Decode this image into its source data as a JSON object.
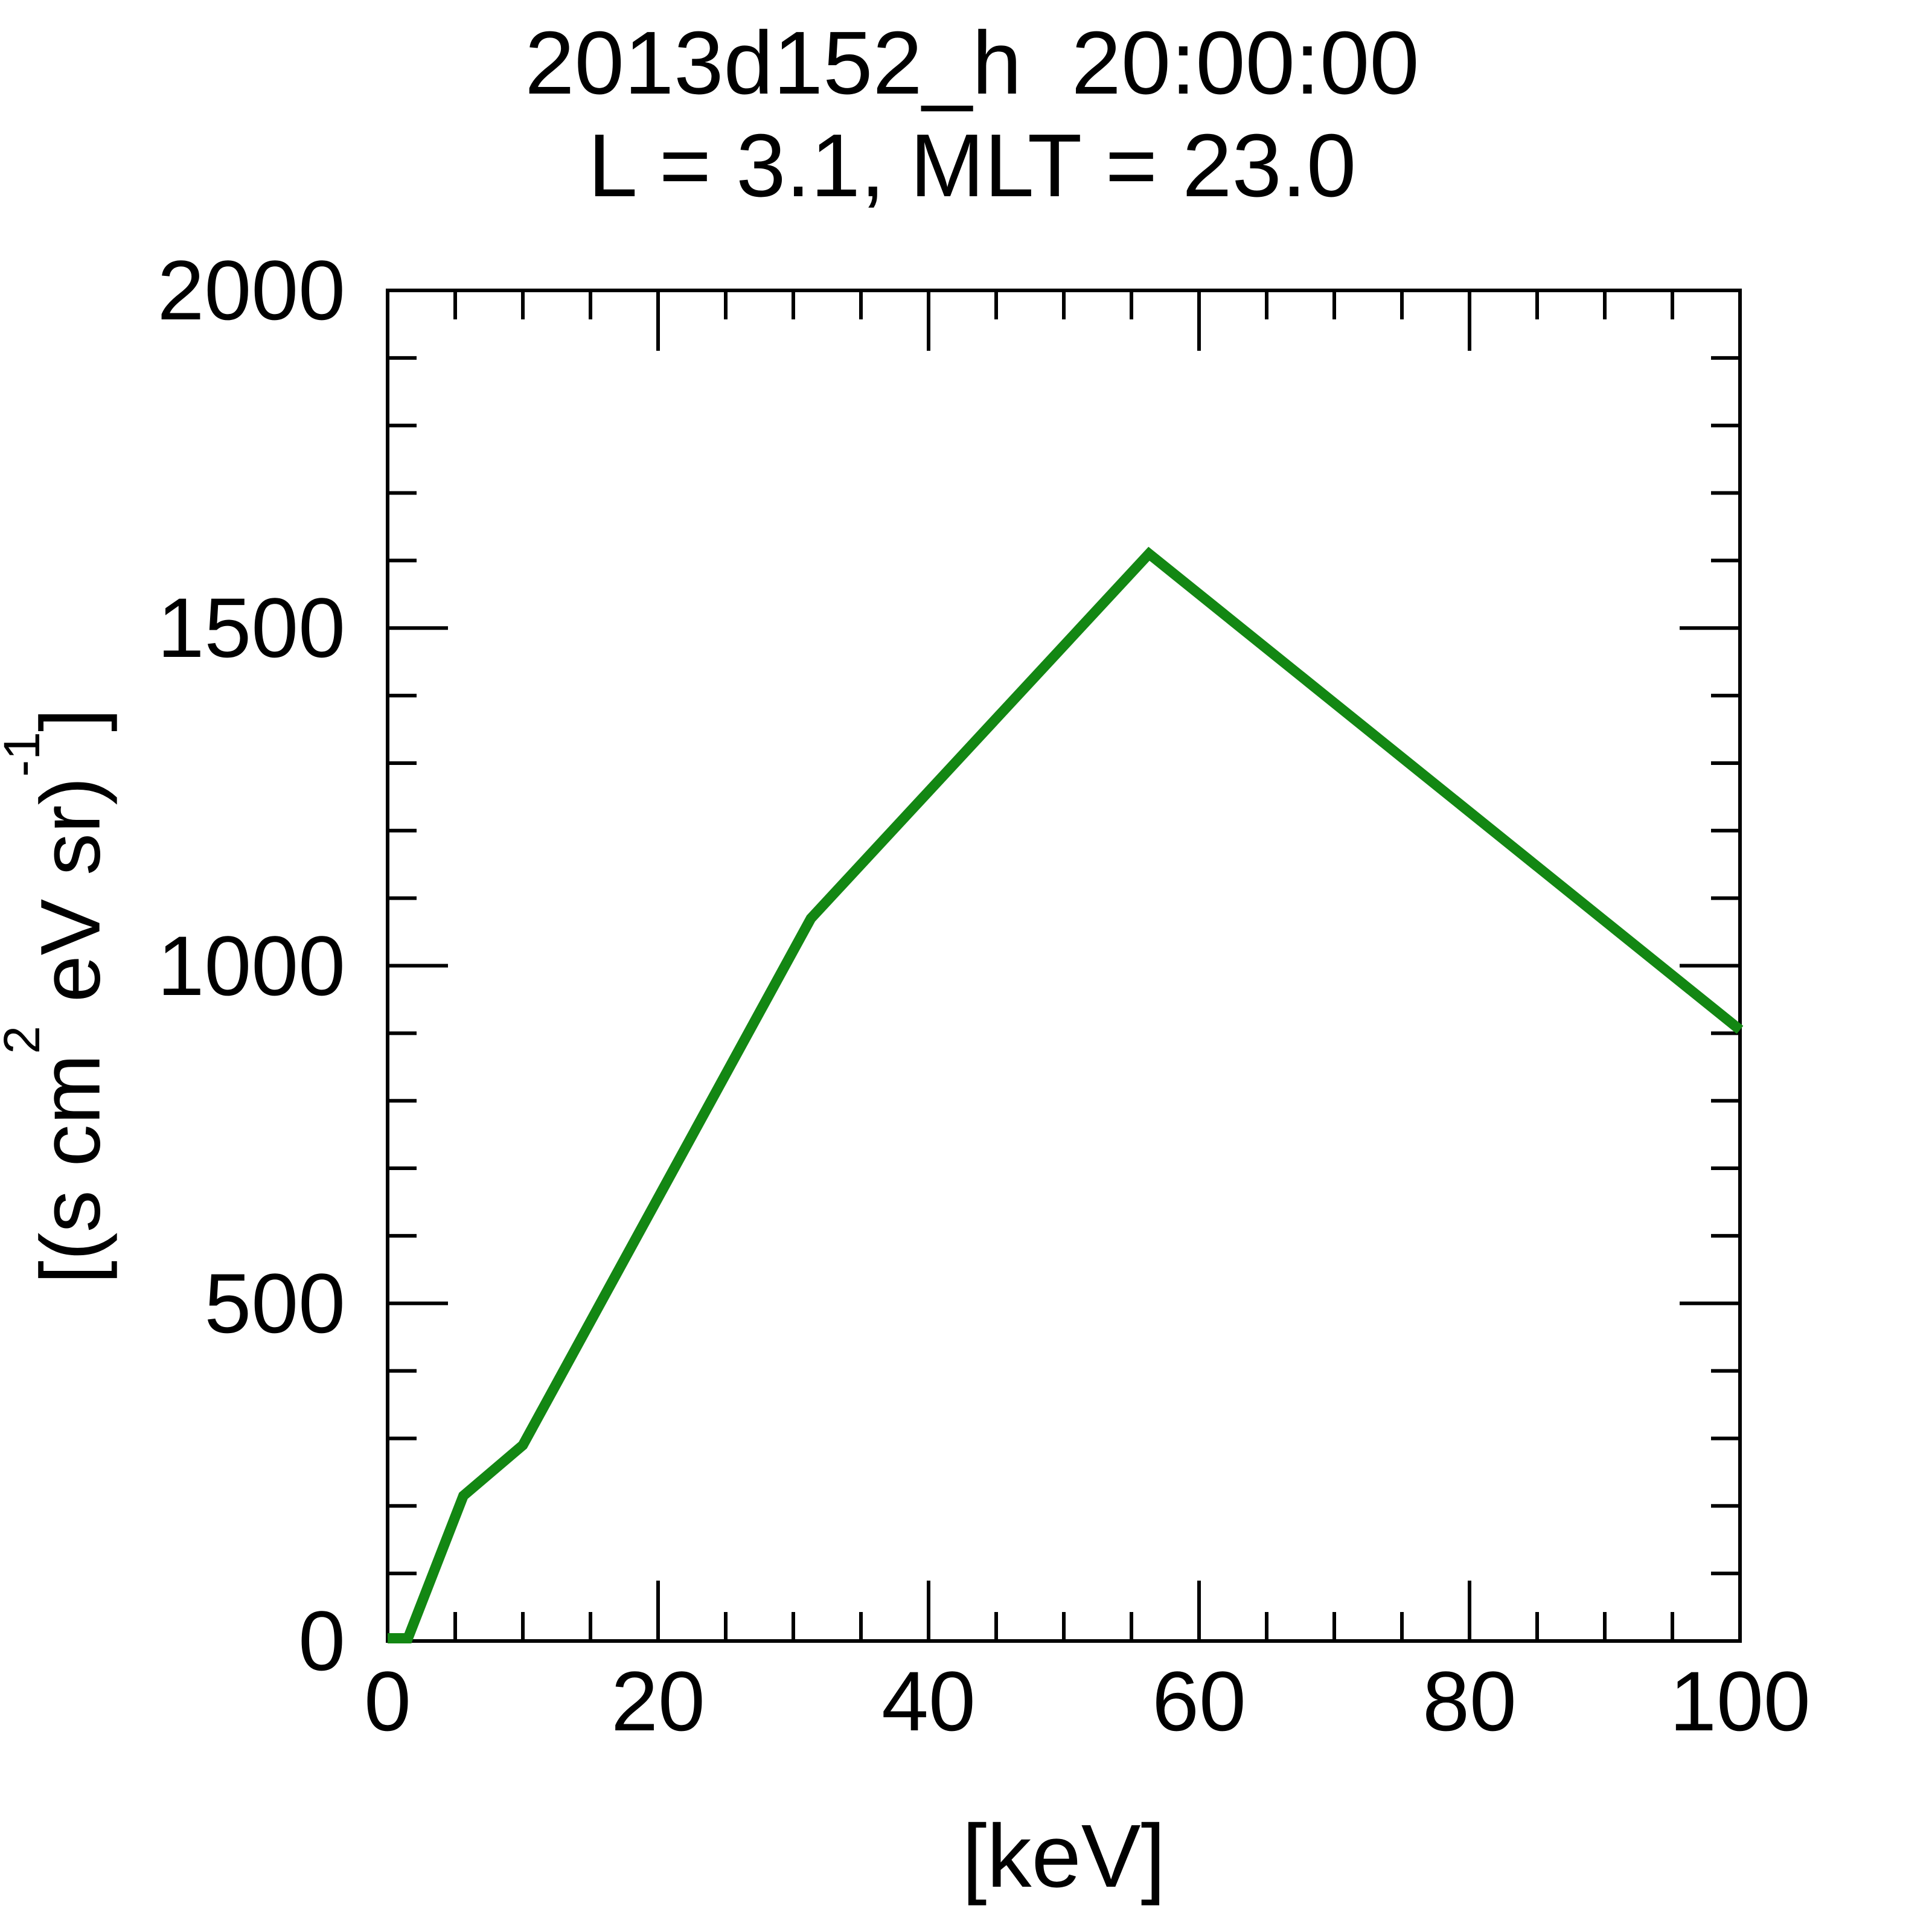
{
  "title": {
    "line1": "2013d152_h  20:00:00",
    "line2": "L = 3.1, MLT = 23.0"
  },
  "axes": {
    "xlabel": "[keV]",
    "ylabel_parts": {
      "p1": "[(s cm",
      "sup1": "2",
      "p2": " eV sr)",
      "sup2": "-1",
      "p3": "]"
    }
  },
  "chart_data": {
    "type": "line",
    "title": "2013d152_h  20:00:00  /  L = 3.1, MLT = 23.0",
    "xlabel": "[keV]",
    "ylabel": "[(s cm^2 eV sr)^-1]",
    "x": [
      0,
      1.5,
      5.6,
      10,
      31.3,
      56.3,
      100
    ],
    "y": [
      4,
      4,
      215,
      290,
      1070,
      1610,
      905
    ],
    "xlim": [
      0,
      100
    ],
    "ylim": [
      0,
      2000
    ],
    "x_major_ticks": [
      0,
      20,
      40,
      60,
      80,
      100
    ],
    "y_major_ticks": [
      0,
      500,
      1000,
      1500,
      2000
    ],
    "x_minor_step": 5,
    "y_minor_step": 100,
    "line_color": "#138713",
    "axis_color": "#000000",
    "grid": false,
    "legend": null
  }
}
